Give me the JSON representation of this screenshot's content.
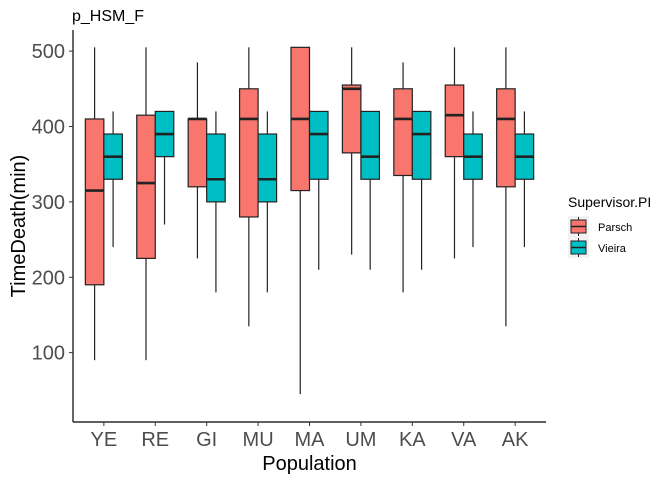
{
  "chart_data": {
    "type": "box",
    "title": "p_HSM_F",
    "xlabel": "Population",
    "ylabel": "TimeDeath(min)",
    "categories": [
      "YE",
      "RE",
      "GI",
      "MU",
      "MA",
      "UM",
      "KA",
      "VA",
      "AK"
    ],
    "yticks": [
      100,
      200,
      300,
      400,
      500
    ],
    "ylim": [
      8,
      528
    ],
    "grid": false,
    "legend": {
      "title": "Supervisor.PI",
      "placement": "right"
    },
    "series": [
      {
        "name": "Parsch",
        "color": "#F8766D",
        "boxes": [
          {
            "min": 90,
            "q1": 190,
            "median": 315,
            "q3": 410,
            "max": 505
          },
          {
            "min": 90,
            "q1": 225,
            "median": 325,
            "q3": 415,
            "max": 505
          },
          {
            "min": 225,
            "q1": 320,
            "median": 410,
            "q3": 410,
            "max": 485
          },
          {
            "min": 135,
            "q1": 280,
            "median": 410,
            "q3": 450,
            "max": 505
          },
          {
            "min": 45,
            "q1": 315,
            "median": 410,
            "q3": 505,
            "max": 505
          },
          {
            "min": 230,
            "q1": 365,
            "median": 450,
            "q3": 455,
            "max": 505
          },
          {
            "min": 180,
            "q1": 335,
            "median": 410,
            "q3": 450,
            "max": 485
          },
          {
            "min": 225,
            "q1": 360,
            "median": 415,
            "q3": 455,
            "max": 505
          },
          {
            "min": 135,
            "q1": 320,
            "median": 410,
            "q3": 450,
            "max": 505
          }
        ]
      },
      {
        "name": "Vieira",
        "color": "#00BFC4",
        "boxes": [
          {
            "min": 240,
            "q1": 330,
            "median": 360,
            "q3": 390,
            "max": 420
          },
          {
            "min": 270,
            "q1": 360,
            "median": 390,
            "q3": 420,
            "max": 420
          },
          {
            "min": 180,
            "q1": 300,
            "median": 330,
            "q3": 390,
            "max": 420
          },
          {
            "min": 180,
            "q1": 300,
            "median": 330,
            "q3": 390,
            "max": 420
          },
          {
            "min": 210,
            "q1": 330,
            "median": 390,
            "q3": 420,
            "max": 420
          },
          {
            "min": 210,
            "q1": 330,
            "median": 360,
            "q3": 420,
            "max": 420
          },
          {
            "min": 210,
            "q1": 330,
            "median": 390,
            "q3": 420,
            "max": 420
          },
          {
            "min": 240,
            "q1": 330,
            "median": 360,
            "q3": 390,
            "max": 420
          },
          {
            "min": 240,
            "q1": 330,
            "median": 360,
            "q3": 390,
            "max": 420
          }
        ]
      }
    ]
  }
}
